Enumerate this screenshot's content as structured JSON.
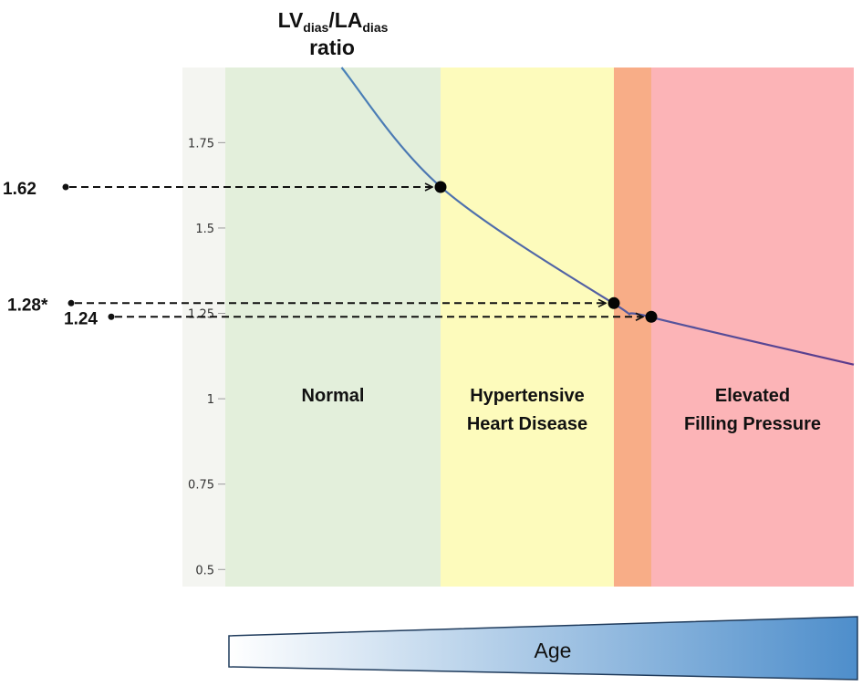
{
  "chart_data": {
    "type": "line",
    "title_main": "LV",
    "title_sub1": "dias",
    "title_slash": "/LA",
    "title_sub2": "dias",
    "title_line2": "ratio",
    "ylim": [
      0.45,
      1.97
    ],
    "y_ticks": [
      {
        "value": 0.5,
        "label": "0.5"
      },
      {
        "value": 0.75,
        "label": "0.75"
      },
      {
        "value": 1.0,
        "label": "1"
      },
      {
        "value": 1.25,
        "label": "1.25"
      },
      {
        "value": 1.5,
        "label": "1.5"
      },
      {
        "value": 1.75,
        "label": "1.75"
      }
    ],
    "curve": {
      "description_free": true,
      "points": [
        {
          "t": 0.185,
          "y": 1.97
        },
        {
          "t": 0.343,
          "y": 1.62
        },
        {
          "t": 0.617,
          "y": 1.28
        },
        {
          "t": 0.675,
          "y": 1.24
        },
        {
          "t": 1.0,
          "y": 1.1
        }
      ]
    },
    "regions": [
      {
        "label_lines": [
          "Normal"
        ],
        "color": "#e3efdb"
      },
      {
        "label_lines": [
          "Hypertensive",
          "Heart Disease"
        ],
        "color": "#fdfbbc"
      },
      {
        "label_lines": [],
        "color": "#f8ad87"
      },
      {
        "label_lines": [
          "Elevated",
          "Filling Pressure"
        ],
        "color": "#fcb4b7"
      }
    ],
    "markers": [
      {
        "label": "1.62",
        "value": 1.62
      },
      {
        "label": "1.28*",
        "value": 1.28
      },
      {
        "label": "1.24",
        "value": 1.24
      }
    ],
    "age_label": "Age",
    "colors": {
      "axis_band": "#f4f5f1",
      "curve_start": "#4a82b8",
      "curve_end": "#5b3a8c",
      "age_light": "#ffffff",
      "age_dark": "#4e8ecb"
    }
  }
}
